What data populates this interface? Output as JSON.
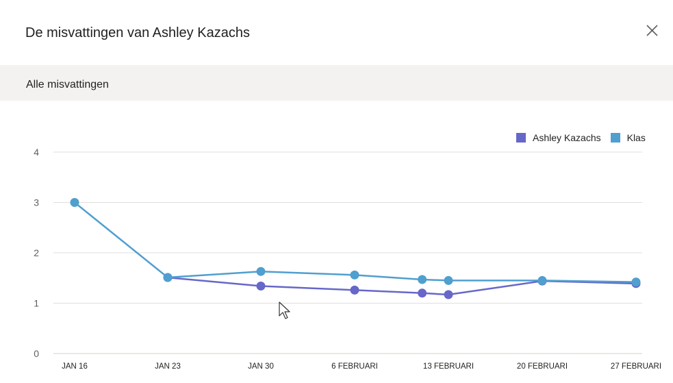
{
  "dialog": {
    "title": "De misvattingen van Ashley Kazachs",
    "close_icon": "close-icon"
  },
  "filter": {
    "label": "Alle misvattingen"
  },
  "chart_data": {
    "type": "line",
    "title": "",
    "xlabel": "",
    "ylabel": "",
    "categories": [
      "JAN 16",
      "JAN 23",
      "JAN 30",
      "6 FEBRUARI",
      "13 FEBRUARI",
      "20 FEBRUARI",
      "27 FEBRUARI"
    ],
    "ylim": [
      0,
      4
    ],
    "yticks": [
      0,
      1,
      2,
      3,
      4
    ],
    "grid": true,
    "legend_position": "top-right",
    "series": [
      {
        "name": "Ashley Kazachs",
        "color": "#6667c9",
        "points": [
          {
            "x": 1,
            "y": 1.51
          },
          {
            "x": 2,
            "y": 1.34
          },
          {
            "x": 3,
            "y": 1.26
          },
          {
            "x": 3.72,
            "y": 1.2
          },
          {
            "x": 4,
            "y": 1.17
          },
          {
            "x": 5,
            "y": 1.44
          },
          {
            "x": 6,
            "y": 1.39
          }
        ]
      },
      {
        "name": "Klas",
        "color": "#4f9fcf",
        "points": [
          {
            "x": 0,
            "y": 3.0
          },
          {
            "x": 1,
            "y": 1.51
          },
          {
            "x": 2,
            "y": 1.63
          },
          {
            "x": 3,
            "y": 1.56
          },
          {
            "x": 3.72,
            "y": 1.47
          },
          {
            "x": 4,
            "y": 1.45
          },
          {
            "x": 5,
            "y": 1.45
          },
          {
            "x": 6,
            "y": 1.42
          }
        ]
      }
    ]
  }
}
